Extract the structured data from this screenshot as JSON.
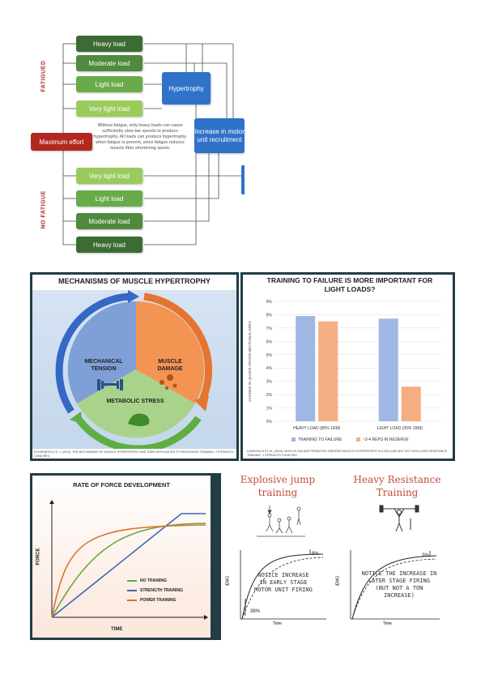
{
  "flowchart": {
    "fatigued_label": "FATIGUED",
    "no_fatigue_label": "NO FATIGUE",
    "maximum_effort": "Maximum effort",
    "fatigued_loads": [
      "Heavy load",
      "Moderate load",
      "Light load",
      "Very light load"
    ],
    "no_fatigue_loads": [
      "Very light load",
      "Light load",
      "Moderate load",
      "Heavy load"
    ],
    "hypertrophy": "Hypertrophy",
    "motor_unit": "Increase in motor unit recruitment",
    "note": "Without fatigue, only heavy loads can cause sufficiently slow bar speeds to produce hypertrophy. All loads can produce hypertrophy when fatigue is present, since fatigue reduces muscle fiber shortening speed.",
    "colors": {
      "dark_green": "#3d6b34",
      "mid_green": "#5c9a45",
      "light_green": "#8ebf55",
      "max_red": "#b2281f",
      "blue": "#2f73c9"
    }
  },
  "mechanisms": {
    "title": "MECHANISMS OF MUSCLE HYPERTROPHY",
    "mechanical": "MECHANICAL TENSION",
    "damage": "MUSCLE DAMAGE",
    "metabolic": "METABOLIC STRESS",
    "citation": "SCHOENFELD, B. J. (2010). THE MECHANISMS OF MUSCLE HYPERTROPHY AND THEIR APPLICATION TO RESISTANCE TRAINING. J STRENGTH COND RES."
  },
  "failure": {
    "title": "TRAINING TO FAILURE IS MORE IMPORTANT FOR LIGHT LOADS?",
    "citation": "LASEVICIUS ET AL. (2019). MUSCLE FAILURE PROMOTES GREATER MUSCLE HYPERTROPHY IN LOW-LOAD BUT NOT HIGH-LOAD RESISTANCE TRAINING. J STRENGTH COND RES."
  },
  "chart_data": [
    {
      "type": "bar",
      "title": "TRAINING TO FAILURE IS MORE IMPORTANT FOR LIGHT LOADS?",
      "ylabel": "CHANGE IN QUADS CROSS-SECTIONAL AREA",
      "xlabel": "",
      "categories": [
        "HEAVY LOAD (80% 1RM)",
        "LIGHT LOAD (30% 1RM)"
      ],
      "yticks": [
        "0%",
        "1%",
        "2%",
        "3%",
        "4%",
        "5%",
        "6%",
        "7%",
        "8%",
        "9%"
      ],
      "ylim": [
        0,
        9
      ],
      "series": [
        {
          "name": "TRAINING TO FAILURE",
          "values": [
            7.9,
            7.7
          ],
          "color": "#9fb7e3"
        },
        {
          "name": "~3-4 REPS IN RESERVE",
          "values": [
            7.5,
            2.6
          ],
          "color": "#f5ad84"
        }
      ],
      "legend": "bottom",
      "grid": true
    },
    {
      "type": "line",
      "title": "RATE OF FORCE DEVELOPMENT",
      "xlabel": "TIME",
      "ylabel": "FORCE",
      "series": [
        {
          "name": "NO TRAINING",
          "color": "#6ca63b"
        },
        {
          "name": "STRENGTH TRAINING",
          "color": "#3f67b2"
        },
        {
          "name": "POWER TRAINING",
          "color": "#d9732a"
        }
      ]
    }
  ],
  "rfd": {
    "title": "RATE OF FORCE DEVELOPMENT",
    "xlabel": "TIME",
    "ylabel": "FORCE",
    "legend": [
      "NO TRAINING",
      "STRENGTH TRAINING",
      "POWER TRAINING"
    ]
  },
  "explosive": {
    "title_left": "Explosive jump training",
    "title_right": "Heavy Resistance Training",
    "notice_left": "NOTICE INCREASE IN EARLY STAGE MOTOR UNIT FIRING",
    "notice_right": "NOTICE THE INCREASE IN LATER STAGE FIRING (BUT NOT A TON INCREASE)",
    "pct_left_top": "8%",
    "pct_left_bottom": "38%",
    "pct_right": "3%",
    "axis_y": "iEMG",
    "axis_x": "Time"
  }
}
